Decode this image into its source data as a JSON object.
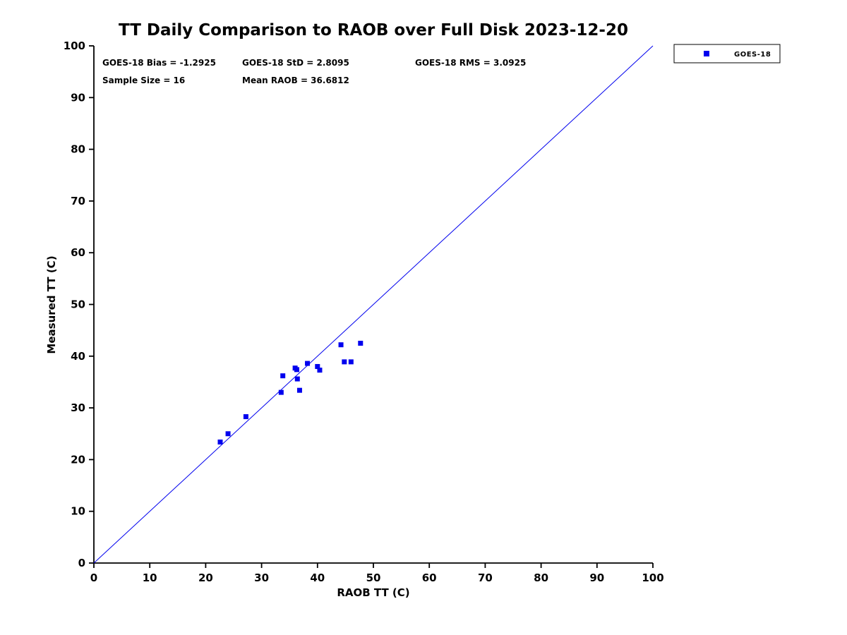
{
  "chart_data": {
    "type": "scatter",
    "title": "TT Daily Comparison to RAOB over Full Disk 2023-12-20",
    "xlabel": "RAOB TT (C)",
    "ylabel": "Measured TT (C)",
    "xlim": [
      0,
      100
    ],
    "ylim": [
      0,
      100
    ],
    "xticks": [
      0,
      10,
      20,
      30,
      40,
      50,
      60,
      70,
      80,
      90,
      100
    ],
    "yticks": [
      0,
      10,
      20,
      30,
      40,
      50,
      60,
      70,
      80,
      90,
      100
    ],
    "grid": false,
    "accent_color": "#0000EE",
    "axis_color": "#000000",
    "annotations": [
      "GOES-18 Bias = -1.2925",
      "GOES-18 StD = 2.8095",
      "GOES-18 RMS = 3.0925",
      "Sample Size = 16",
      "Mean RAOB = 36.6812"
    ],
    "legend": {
      "position": "top-right-outside",
      "entries": [
        "GOES-18"
      ]
    },
    "identity_line": {
      "from": [
        0,
        0
      ],
      "to": [
        100,
        100
      ]
    },
    "marker": "square",
    "marker_size": 7,
    "series": [
      {
        "name": "GOES-18",
        "points": [
          [
            22.6,
            23.4
          ],
          [
            24.0,
            25.0
          ],
          [
            27.2,
            28.3
          ],
          [
            33.5,
            33.0
          ],
          [
            33.8,
            36.2
          ],
          [
            36.0,
            37.7
          ],
          [
            36.3,
            37.4
          ],
          [
            36.4,
            35.6
          ],
          [
            36.8,
            33.4
          ],
          [
            38.2,
            38.6
          ],
          [
            40.0,
            38.0
          ],
          [
            40.4,
            37.3
          ],
          [
            44.2,
            42.2
          ],
          [
            44.8,
            38.9
          ],
          [
            46.0,
            38.9
          ],
          [
            47.7,
            42.5
          ]
        ]
      }
    ]
  }
}
